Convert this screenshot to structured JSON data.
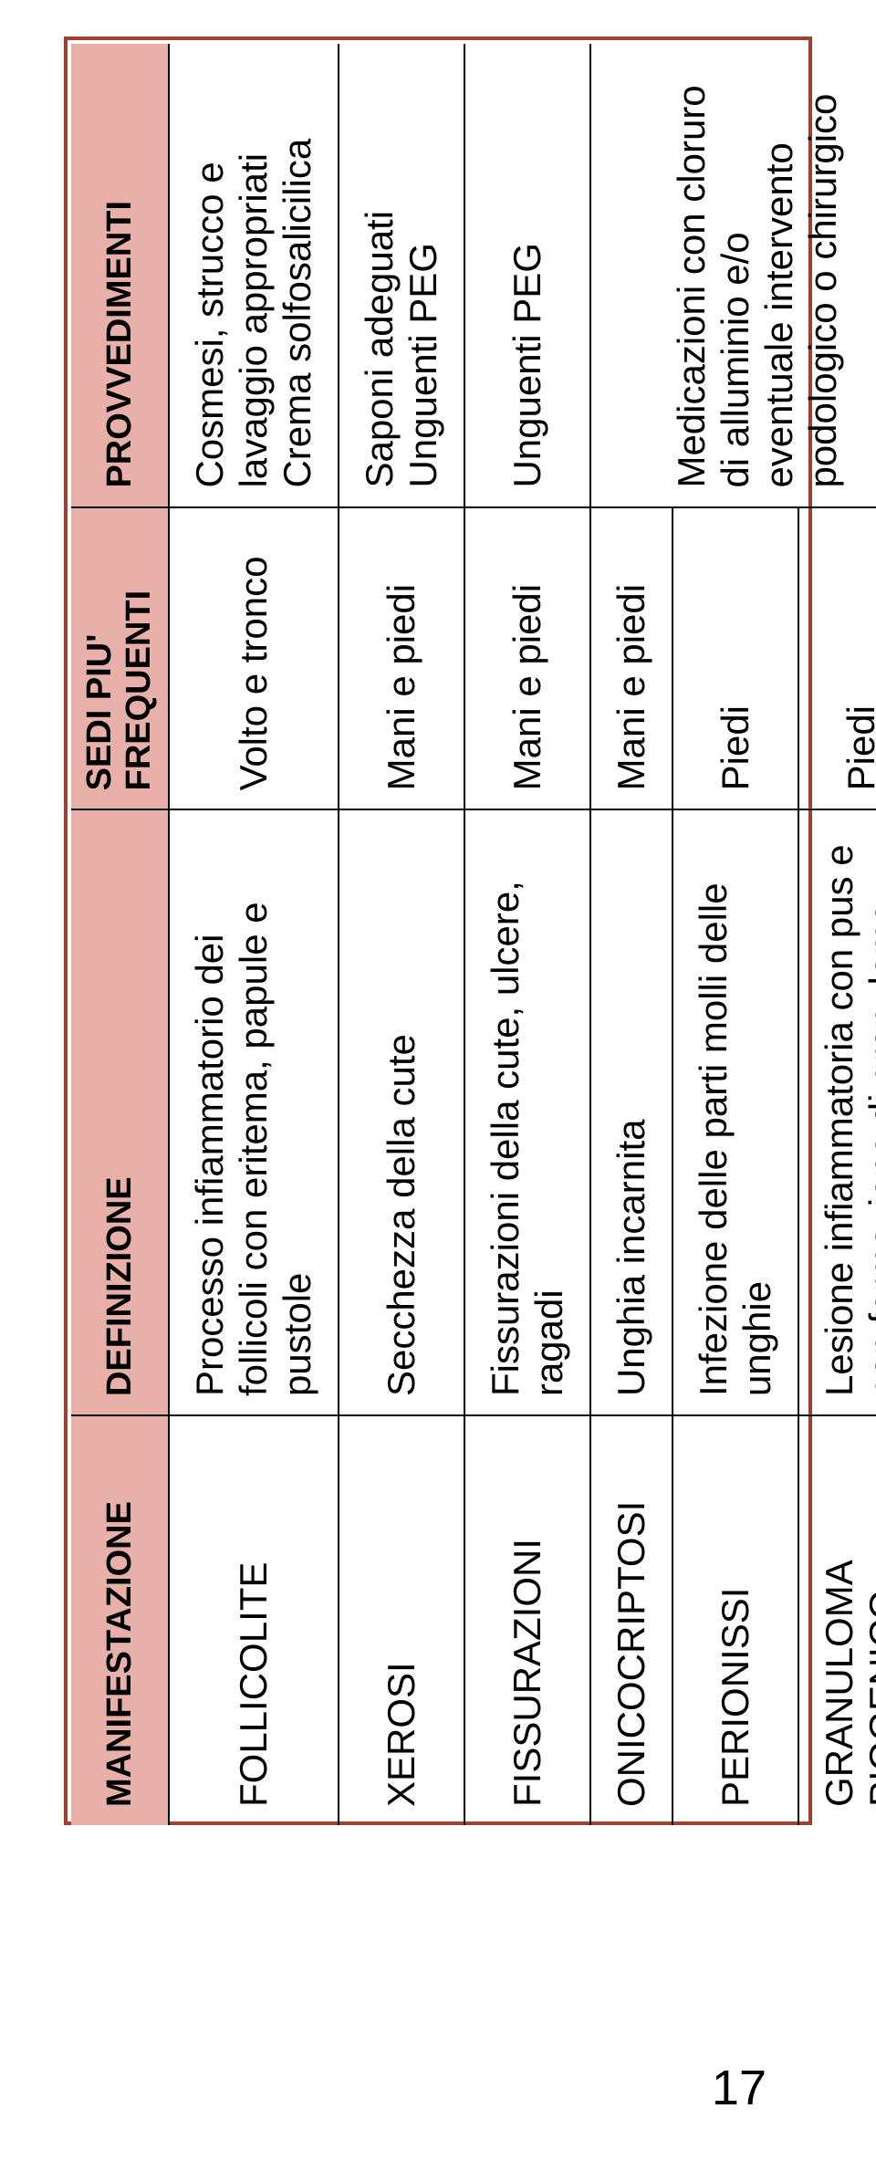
{
  "table": {
    "border_color": "#a04030",
    "header_bg": "#e8b0a8",
    "header_font_size": 38,
    "cell_font_size": 42,
    "text_color": "#000000",
    "headers": {
      "manifestazione": "MANIFESTAZIONE",
      "definizione": "DEFINIZIONE",
      "sedi": "SEDI PIU' FREQUENTI",
      "provvedimenti": "PROVVEDIMENTI"
    },
    "rows": [
      {
        "manifestazione": "FOLLICOLITE",
        "definizione": "Processo infiammatorio dei follicoli con eritema, papule e pustole",
        "sedi": "Volto e tronco",
        "provvedimenti": "Cosmesi, strucco e lavaggio appropriati Crema solfosalicilica"
      },
      {
        "manifestazione": "XEROSI",
        "definizione": "Secchezza della cute",
        "sedi": "Mani e piedi",
        "provvedimenti": "Saponi adeguati Unguenti PEG"
      },
      {
        "manifestazione": "FISSURAZIONI",
        "definizione": "Fissurazioni della cute, ulcere, ragadi",
        "sedi": "Mani e piedi",
        "provvedimenti": "Unguenti PEG"
      },
      {
        "manifestazione": "ONICOCRIPTOSI",
        "definizione": "Unghia incarnita",
        "sedi": "Mani e piedi",
        "provvedimenti": ""
      },
      {
        "manifestazione": "PERIONISSI",
        "definizione": "Infezione delle parti molli delle unghie",
        "sedi": "Piedi",
        "provvedimenti": "Medicazioni con cloruro di alluminio e/o eventuale intervento podologico o chirurgico"
      },
      {
        "manifestazione": "GRANULOMA PIOGENICO",
        "definizione": "Lesione infiammatoria con pus e con formazione di granuloma",
        "sedi": "Piedi",
        "provvedimenti": ""
      }
    ]
  },
  "page_number": "17"
}
